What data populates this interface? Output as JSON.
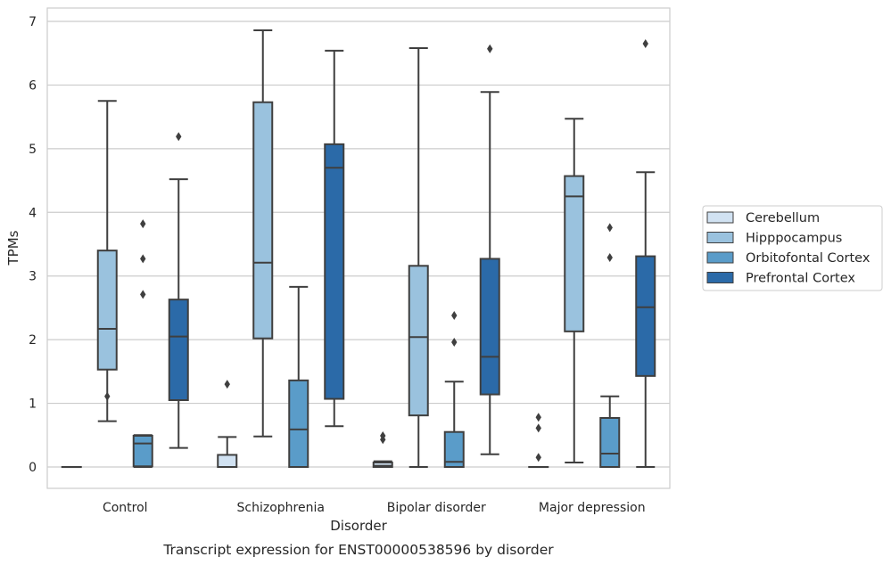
{
  "caption": "Transcript expression for ENST00000538596 by disorder",
  "chart_data": {
    "type": "boxplot",
    "title": "",
    "xlabel": "Disorder",
    "ylabel": "TPMs",
    "ylim": [
      -0.33,
      7.2
    ],
    "yticks": [
      0,
      1,
      2,
      3,
      4,
      5,
      6,
      7
    ],
    "grid": "horizontal",
    "legend_position": "right",
    "categories": [
      "Control",
      "Schizophrenia",
      "Bipolar disorder",
      "Major depression"
    ],
    "series": [
      {
        "name": "Cerebellum",
        "color": "#d1e2f2",
        "boxes": [
          {
            "whislo": 0,
            "q1": 0,
            "med": 0,
            "q3": 0,
            "whishi": 0,
            "fliers": []
          },
          {
            "whislo": 0,
            "q1": 0,
            "med": 0,
            "q3": 0.19,
            "whishi": 0.47,
            "fliers": [
              1.3
            ]
          },
          {
            "whislo": 0,
            "q1": 0,
            "med": 0.02,
            "q3": 0.07,
            "whishi": 0.09,
            "fliers": [
              0.43,
              0.49
            ]
          },
          {
            "whislo": 0,
            "q1": 0,
            "med": 0,
            "q3": 0,
            "whishi": 0,
            "fliers": [
              0.15,
              0.61,
              0.78
            ]
          }
        ]
      },
      {
        "name": "Hipppocampus",
        "color": "#9ac2de",
        "boxes": [
          {
            "whislo": 0.72,
            "q1": 1.53,
            "med": 2.17,
            "q3": 3.4,
            "whishi": 5.75,
            "fliers": [
              1.11
            ]
          },
          {
            "whislo": 0.48,
            "q1": 2.02,
            "med": 3.21,
            "q3": 5.73,
            "whishi": 6.86,
            "fliers": []
          },
          {
            "whislo": 0,
            "q1": 0.81,
            "med": 2.04,
            "q3": 3.16,
            "whishi": 6.58,
            "fliers": []
          },
          {
            "whislo": 0.07,
            "q1": 2.13,
            "med": 4.25,
            "q3": 4.57,
            "whishi": 5.47,
            "fliers": []
          }
        ]
      },
      {
        "name": "Orbitofontal Cortex",
        "color": "#5a9cc9",
        "boxes": [
          {
            "whislo": 0,
            "q1": 0.01,
            "med": 0.37,
            "q3": 0.49,
            "whishi": 0.5,
            "fliers": [
              2.71,
              3.27,
              3.82
            ]
          },
          {
            "whislo": 0,
            "q1": 0,
            "med": 0.59,
            "q3": 1.36,
            "whishi": 2.83,
            "fliers": []
          },
          {
            "whislo": 0,
            "q1": 0,
            "med": 0.08,
            "q3": 0.55,
            "whishi": 1.34,
            "fliers": [
              1.96,
              2.38
            ]
          },
          {
            "whislo": 0,
            "q1": 0,
            "med": 0.21,
            "q3": 0.77,
            "whishi": 1.11,
            "fliers": [
              3.29,
              3.76
            ]
          }
        ]
      },
      {
        "name": "Prefrontal Cortex",
        "color": "#2b6aa8",
        "boxes": [
          {
            "whislo": 0.3,
            "q1": 1.05,
            "med": 2.05,
            "q3": 2.63,
            "whishi": 4.52,
            "fliers": [
              5.19
            ]
          },
          {
            "whislo": 0.64,
            "q1": 1.07,
            "med": 4.7,
            "q3": 5.07,
            "whishi": 6.54,
            "fliers": []
          },
          {
            "whislo": 0.2,
            "q1": 1.14,
            "med": 1.73,
            "q3": 3.27,
            "whishi": 5.89,
            "fliers": [
              6.57
            ]
          },
          {
            "whislo": 0,
            "q1": 1.43,
            "med": 2.51,
            "q3": 3.31,
            "whishi": 4.63,
            "fliers": [
              6.65
            ]
          }
        ]
      }
    ]
  }
}
